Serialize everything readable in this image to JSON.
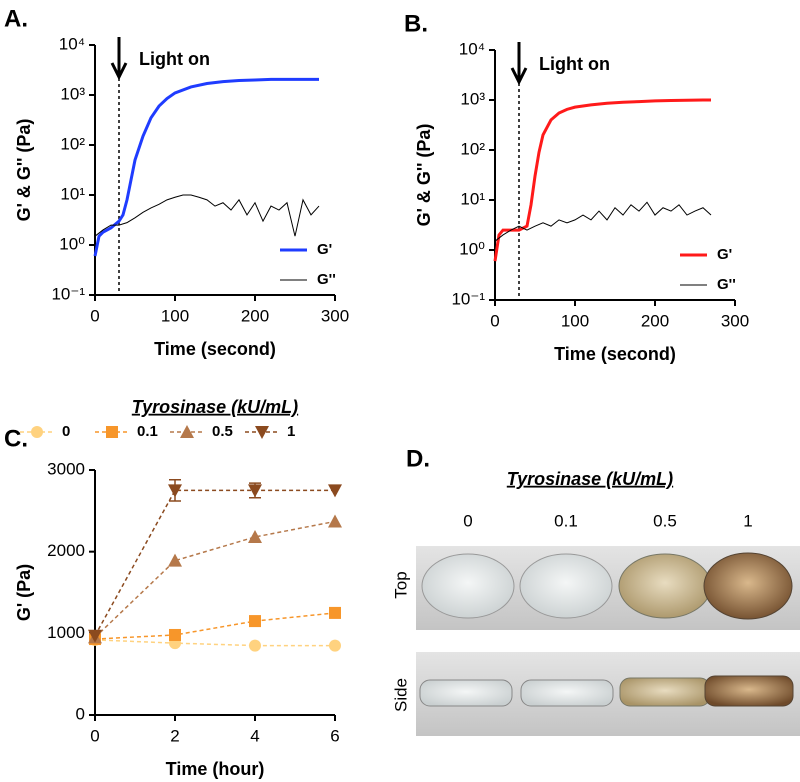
{
  "chart_data": [
    {
      "type": "line",
      "panel": "A.",
      "xlabel": "Time (second)",
      "ylabel": "G' & G'' (Pa)",
      "log_y": true,
      "xlim": [
        0,
        300
      ],
      "xticks": [
        0,
        100,
        200,
        300
      ],
      "ylim": [
        0.1,
        10000
      ],
      "yticks": [
        {
          "value": 0.1,
          "label": "10⁻¹"
        },
        {
          "value": 1,
          "label": "10⁰"
        },
        {
          "value": 10,
          "label": "10¹"
        },
        {
          "value": 100,
          "label": "10²"
        },
        {
          "value": 1000,
          "label": "10³"
        },
        {
          "value": 10000,
          "label": "10⁴"
        }
      ],
      "annotation": "Light on",
      "light_on_x": 30,
      "legend": "lower right",
      "series": [
        {
          "name": "G'",
          "color": "#1f3cff",
          "width": 3,
          "x": [
            0,
            5,
            10,
            20,
            30,
            35,
            40,
            45,
            50,
            60,
            70,
            80,
            90,
            100,
            120,
            140,
            160,
            180,
            200,
            220,
            240,
            260,
            280
          ],
          "values": [
            0.6,
            1.5,
            1.8,
            2.2,
            3,
            4,
            8,
            20,
            50,
            150,
            350,
            600,
            850,
            1100,
            1450,
            1700,
            1850,
            1950,
            2000,
            2050,
            2050,
            2050,
            2050
          ]
        },
        {
          "name": "G''",
          "color": "#000000",
          "width": 1,
          "x": [
            0,
            10,
            20,
            30,
            40,
            50,
            60,
            70,
            80,
            90,
            100,
            110,
            120,
            130,
            140,
            150,
            160,
            170,
            180,
            190,
            200,
            210,
            220,
            230,
            240,
            250,
            260,
            270,
            280
          ],
          "values": [
            1.5,
            2,
            2.5,
            2.5,
            2.8,
            3.5,
            4.5,
            5.5,
            6.5,
            8,
            9,
            10,
            10,
            9,
            8,
            6,
            7,
            5,
            8,
            4,
            7,
            3,
            6,
            5,
            7,
            1.5,
            8,
            4,
            6
          ]
        }
      ]
    },
    {
      "type": "line",
      "panel": "B.",
      "xlabel": "Time (second)",
      "ylabel": "G' & G'' (Pa)",
      "log_y": true,
      "xlim": [
        0,
        300
      ],
      "xticks": [
        0,
        100,
        200,
        300
      ],
      "ylim": [
        0.1,
        10000
      ],
      "yticks": [
        {
          "value": 0.1,
          "label": "10⁻¹"
        },
        {
          "value": 1,
          "label": "10⁰"
        },
        {
          "value": 10,
          "label": "10¹"
        },
        {
          "value": 100,
          "label": "10²"
        },
        {
          "value": 1000,
          "label": "10³"
        },
        {
          "value": 10000,
          "label": "10⁴"
        }
      ],
      "annotation": "Light on",
      "light_on_x": 30,
      "legend": "lower right",
      "series": [
        {
          "name": "G'",
          "color": "#ff1a1a",
          "width": 3,
          "x": [
            0,
            5,
            10,
            20,
            30,
            40,
            45,
            50,
            55,
            60,
            70,
            80,
            90,
            100,
            120,
            140,
            160,
            180,
            200,
            220,
            240,
            260,
            270
          ],
          "values": [
            0.6,
            2,
            2.5,
            2.5,
            2.5,
            3,
            8,
            30,
            90,
            200,
            400,
            550,
            650,
            720,
            800,
            860,
            900,
            930,
            960,
            980,
            990,
            1000,
            1000
          ]
        },
        {
          "name": "G''",
          "color": "#000000",
          "width": 1,
          "x": [
            0,
            10,
            20,
            30,
            40,
            50,
            60,
            70,
            80,
            90,
            100,
            110,
            120,
            130,
            140,
            150,
            160,
            170,
            180,
            190,
            200,
            210,
            220,
            230,
            240,
            250,
            260,
            270
          ],
          "values": [
            1.5,
            2,
            2.5,
            3,
            2.5,
            3,
            3.5,
            3,
            4,
            3.5,
            4,
            5,
            4,
            6,
            4,
            7,
            5,
            8,
            6,
            9,
            5,
            7,
            6,
            8,
            5,
            6,
            7,
            5
          ]
        }
      ]
    },
    {
      "type": "line",
      "panel": "C.",
      "xlabel": "Time (hour)",
      "ylabel": "G' (Pa)",
      "log_y": false,
      "legend_title": "Tyrosinase (kU/mL)",
      "legend": "top",
      "dashed": true,
      "xlim": [
        0,
        6
      ],
      "xticks": [
        0,
        2,
        4,
        6
      ],
      "ylim": [
        0,
        3000
      ],
      "yticks": [
        0,
        1000,
        2000,
        3000
      ],
      "series": [
        {
          "name": "0",
          "color": "#ffd27f",
          "marker": "circle",
          "x": [
            0,
            2,
            4,
            6
          ],
          "values": [
            920,
            880,
            850,
            850
          ]
        },
        {
          "name": "0.1",
          "color": "#f7962a",
          "marker": "square",
          "x": [
            0,
            2,
            4,
            6
          ],
          "values": [
            930,
            980,
            1150,
            1250
          ]
        },
        {
          "name": "0.5",
          "color": "#b5784a",
          "marker": "triangle-up",
          "x": [
            0,
            2,
            4,
            6
          ],
          "values": [
            950,
            1890,
            2180,
            2370
          ]
        },
        {
          "name": "1",
          "color": "#8b4a1f",
          "marker": "triangle-down",
          "x": [
            0,
            2,
            4,
            6
          ],
          "values": [
            970,
            2750,
            2750,
            2750
          ],
          "errors": [
            null,
            130,
            90,
            null
          ]
        }
      ]
    }
  ],
  "photo_panel": {
    "panel": "D.",
    "title": "Tyrosinase (kU/mL)",
    "columns": [
      "0",
      "0.1",
      "0.5",
      "1"
    ],
    "rows": [
      "Top",
      "Side"
    ]
  }
}
